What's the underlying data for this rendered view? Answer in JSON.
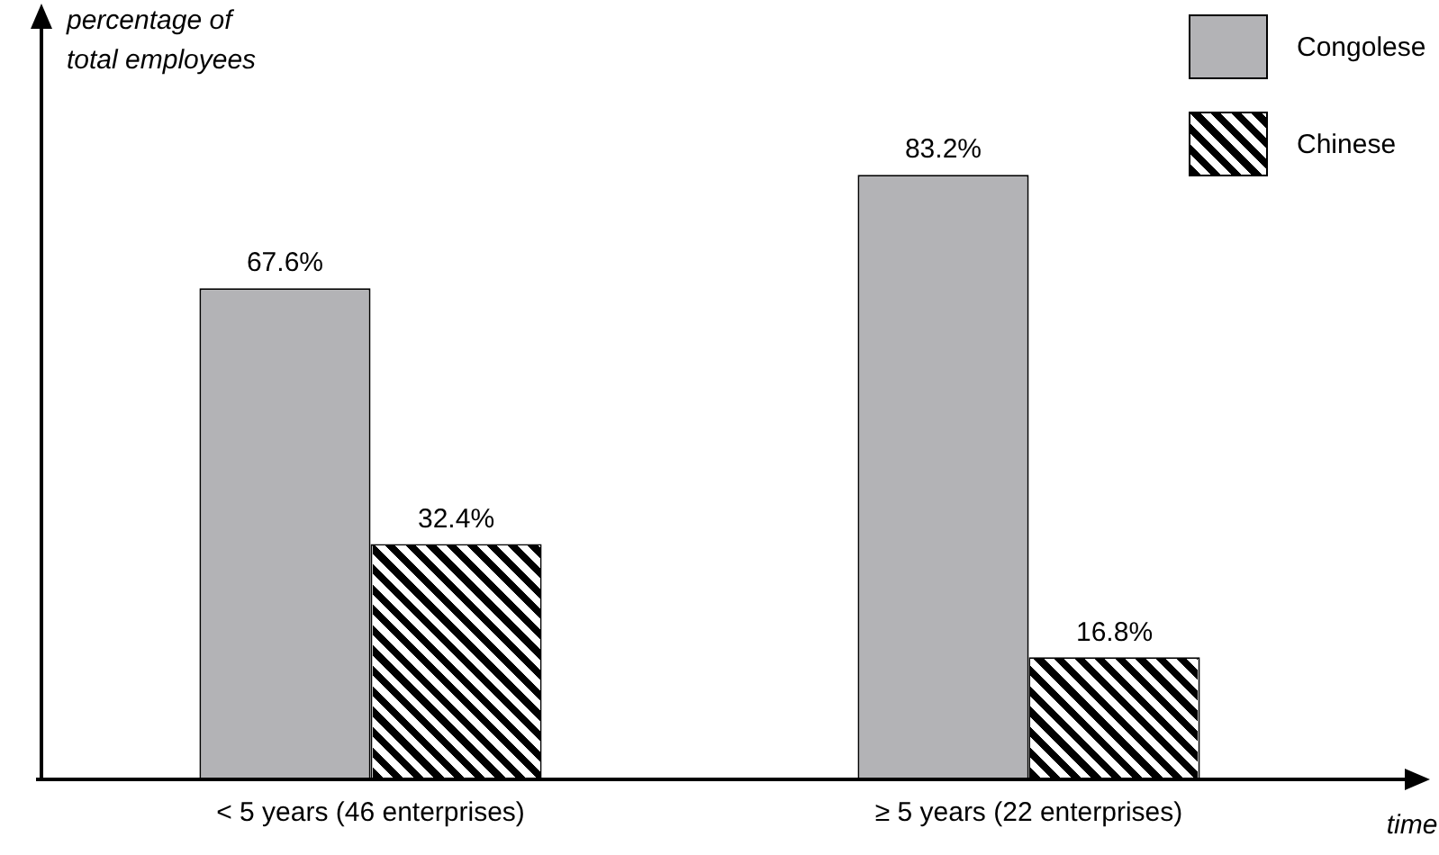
{
  "chart_data": {
    "type": "bar",
    "xlabel": "time",
    "ylabel": "percentage of\ntotal employees",
    "categories": [
      "< 5 years (46 enterprises)",
      "≥ 5 years (22 enterprises)"
    ],
    "series": [
      {
        "name": "Congolese",
        "color": "#b3b3b6",
        "values": [
          67.6,
          83.2
        ],
        "value_labels": [
          "67.6%",
          "83.2%"
        ]
      },
      {
        "name": "Chinese",
        "color": "#000000",
        "values": [
          32.4,
          16.8
        ],
        "value_labels": [
          "32.4%",
          "16.8%"
        ]
      }
    ],
    "legend": "top right",
    "tick_labels": "x",
    "grid": false
  }
}
